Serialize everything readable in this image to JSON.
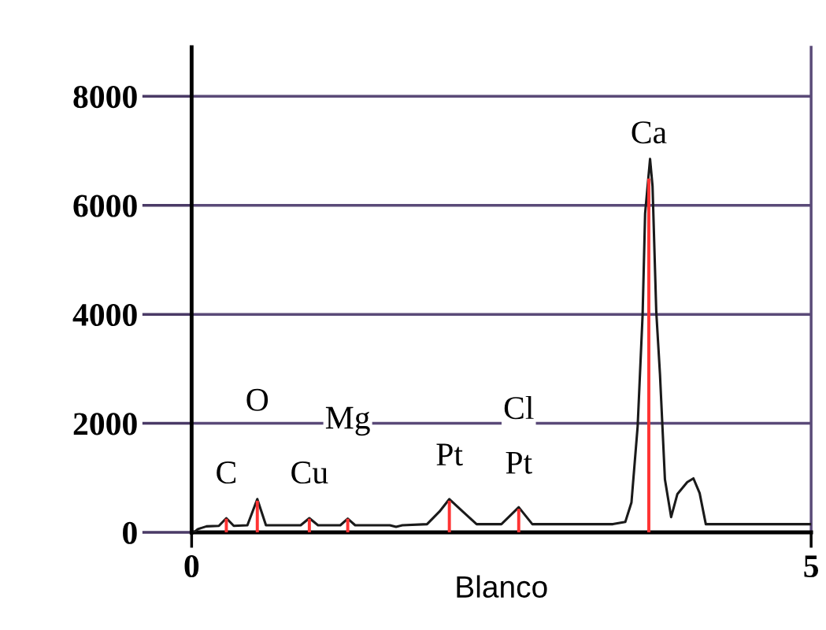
{
  "chart_data": {
    "type": "line",
    "xlabel": "Blanco",
    "xlim": [
      0,
      5
    ],
    "xticks": [
      0,
      5
    ],
    "ylim": [
      0,
      8900
    ],
    "yticks": [
      0,
      2000,
      4000,
      6000,
      8000
    ],
    "grid": "y",
    "marker": "none",
    "line_style": "solid",
    "series": [
      {
        "color": "#1a1a1a",
        "x": [
          0.02,
          0.05,
          0.12,
          0.22,
          0.28,
          0.34,
          0.45,
          0.53,
          0.6,
          0.88,
          0.95,
          1.02,
          1.2,
          1.26,
          1.32,
          1.6,
          1.65,
          1.7,
          1.9,
          2.0,
          2.08,
          2.18,
          2.3,
          2.5,
          2.64,
          2.75,
          3.0,
          3.4,
          3.5,
          3.55,
          3.6,
          3.64,
          3.66,
          3.7,
          3.72,
          3.75,
          3.78,
          3.82,
          3.87,
          3.92,
          4.0,
          4.05,
          4.1,
          4.15,
          5.0
        ],
        "values": [
          0,
          60,
          110,
          120,
          260,
          120,
          130,
          610,
          130,
          130,
          260,
          130,
          130,
          250,
          130,
          130,
          100,
          130,
          150,
          380,
          610,
          400,
          150,
          150,
          460,
          150,
          150,
          150,
          190,
          550,
          1950,
          4000,
          5850,
          6850,
          6350,
          4050,
          2900,
          970,
          280,
          700,
          920,
          990,
          720,
          150,
          150
        ]
      },
      {
        "type": "bar",
        "color": "#ff3333",
        "x": [
          0.28,
          0.53,
          0.95,
          1.26,
          2.08,
          2.64,
          3.69
        ],
        "values": [
          250,
          580,
          250,
          250,
          580,
          430,
          6490
        ]
      }
    ],
    "annotations": [
      {
        "text": "C",
        "x": 0.28,
        "y": 250
      },
      {
        "text": "O",
        "x": 0.53,
        "y": 580
      },
      {
        "text": "Cu",
        "x": 0.95,
        "y": 250
      },
      {
        "text": "Mg",
        "x": 1.26,
        "y": 250
      },
      {
        "text": "Pt",
        "x": 2.08,
        "y": 580
      },
      {
        "text": "Pt",
        "x": 2.64,
        "y": 430
      },
      {
        "text": "Cl",
        "x": 2.64,
        "y": 430
      },
      {
        "text": "Ca",
        "x": 3.69,
        "y": 6490
      }
    ]
  }
}
